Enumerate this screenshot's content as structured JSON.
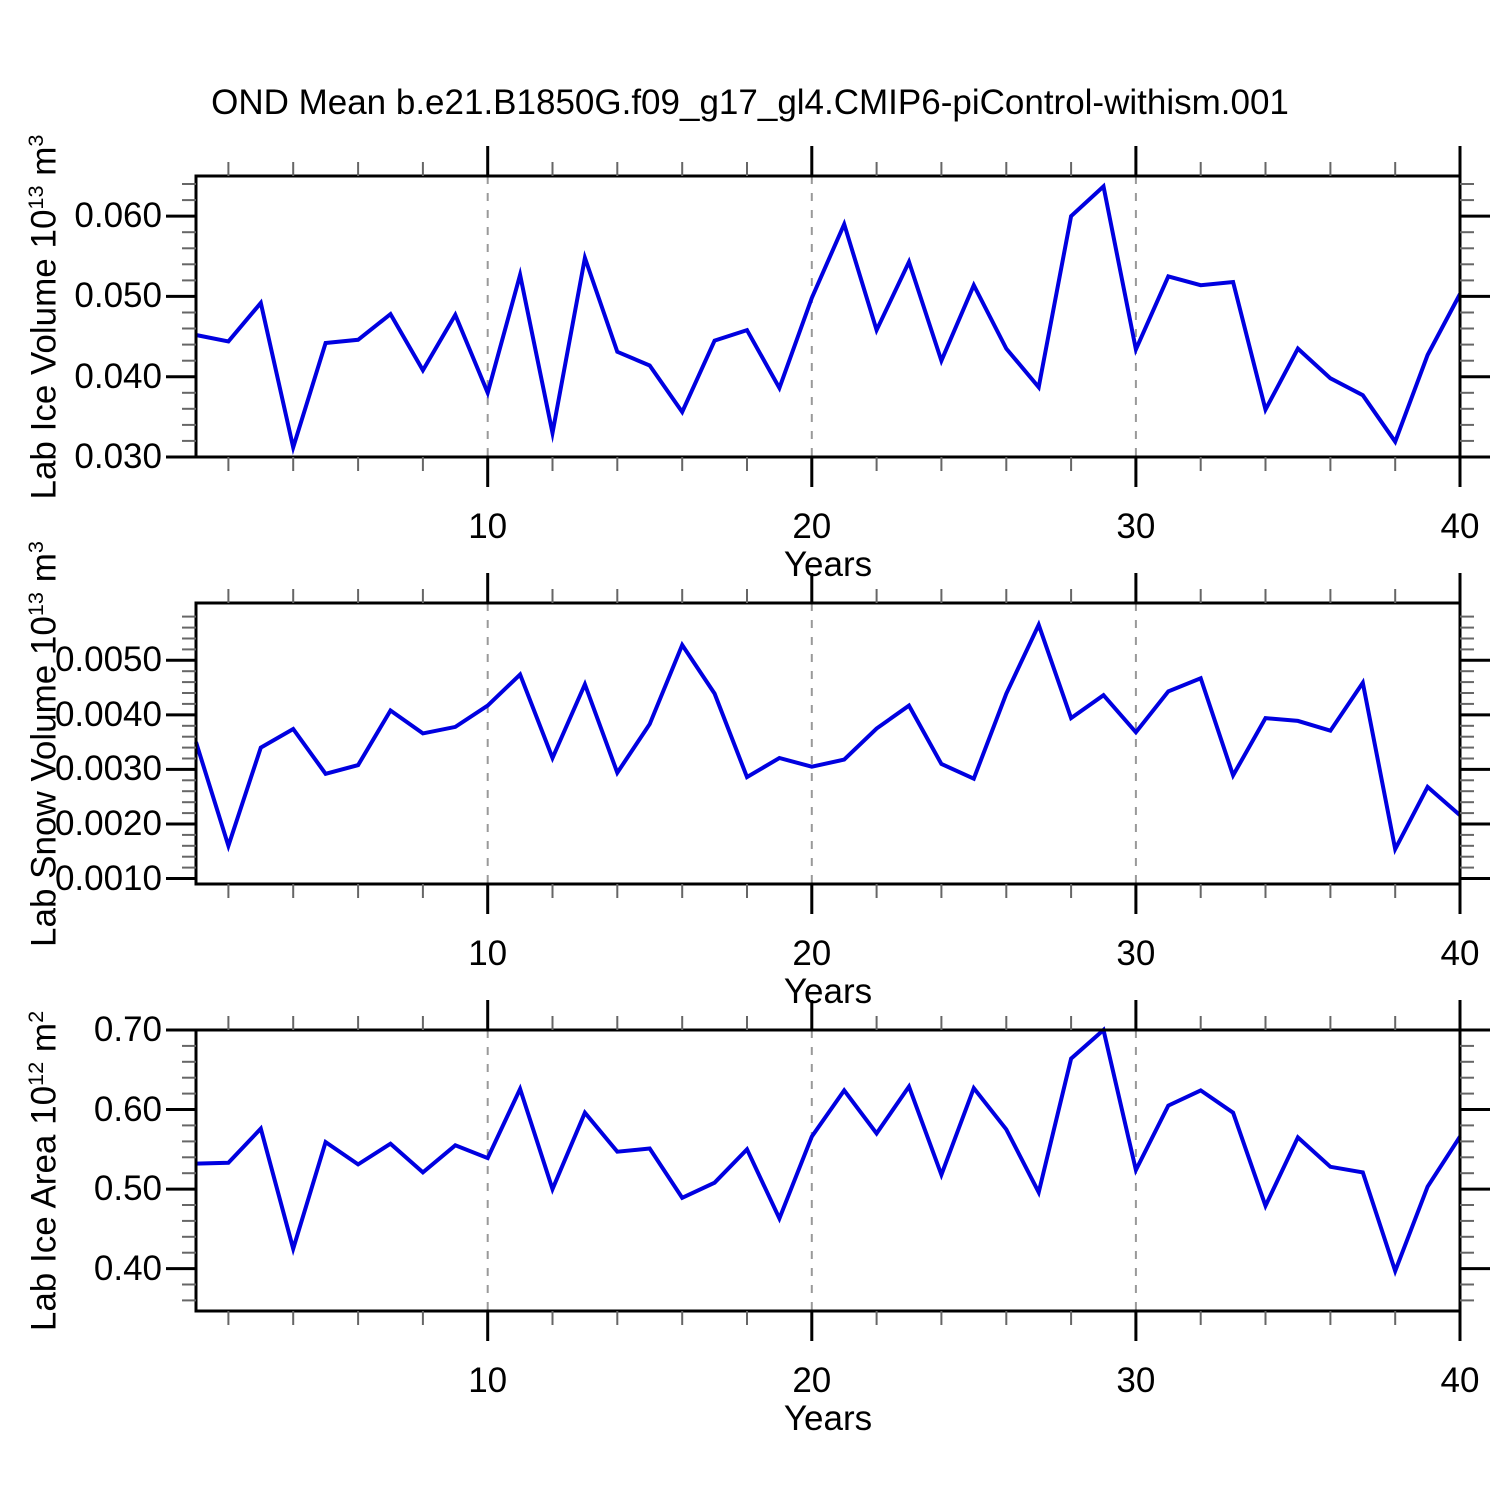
{
  "title": "OND Mean b.e21.B1850G.f09_g17_gl4.CMIP6-piControl-withism.001",
  "colors": {
    "line": "#0000e0",
    "grid": "#999999",
    "axis": "#000000",
    "minor_tick": "#666666",
    "text": "#000000",
    "background": "#ffffff"
  },
  "xlabel": "Years",
  "x_tick_labels": [
    "10",
    "20",
    "30",
    "40"
  ],
  "years": [
    1,
    2,
    3,
    4,
    5,
    6,
    7,
    8,
    9,
    10,
    11,
    12,
    13,
    14,
    15,
    16,
    17,
    18,
    19,
    20,
    21,
    22,
    23,
    24,
    25,
    26,
    27,
    28,
    29,
    30,
    31,
    32,
    33,
    34,
    35,
    36,
    37,
    38,
    39,
    40
  ],
  "chart_data": [
    {
      "type": "line",
      "title": "",
      "ylabel": "Lab Ice Volume 10^{13} m^{3}",
      "xlabel": "Years",
      "xlim": [
        1,
        40
      ],
      "ylim": [
        0.03,
        0.065
      ],
      "yticks": [
        0.03,
        0.04,
        0.05,
        0.06
      ],
      "ytick_labels": [
        "0.030",
        "0.040",
        "0.050",
        "0.060"
      ],
      "y_minor_step": 0.002,
      "xticks": [
        10,
        20,
        30,
        40
      ],
      "x_minor_step": 2,
      "grid_x": [
        10,
        20,
        30
      ],
      "grid_style": "dashed",
      "legend": "none",
      "values": [
        0.0452,
        0.0444,
        0.0492,
        0.0312,
        0.0442,
        0.0446,
        0.0478,
        0.0408,
        0.0477,
        0.038,
        0.0527,
        0.033,
        0.0548,
        0.0431,
        0.0414,
        0.0356,
        0.0445,
        0.0458,
        0.0386,
        0.0498,
        0.059,
        0.0458,
        0.0543,
        0.042,
        0.0514,
        0.0435,
        0.0387,
        0.06,
        0.0637,
        0.0434,
        0.0525,
        0.0514,
        0.0518,
        0.0359,
        0.0435,
        0.0398,
        0.0377,
        0.0319,
        0.0427,
        0.0503
      ]
    },
    {
      "type": "line",
      "title": "",
      "ylabel": "Lab Snow Volume 10^{13} m^{3}",
      "xlabel": "Years",
      "xlim": [
        1,
        40
      ],
      "ylim": [
        0.0009,
        0.00605
      ],
      "yticks": [
        0.001,
        0.002,
        0.003,
        0.004,
        0.005
      ],
      "ytick_labels": [
        "0.0010",
        "0.0020",
        "0.0030",
        "0.0040",
        "0.0050"
      ],
      "y_minor_step": 0.0002,
      "xticks": [
        10,
        20,
        30,
        40
      ],
      "x_minor_step": 2,
      "grid_x": [
        10,
        20,
        30
      ],
      "grid_style": "dashed",
      "legend": "none",
      "values": [
        0.0035,
        0.0016,
        0.0034,
        0.00374,
        0.00292,
        0.00308,
        0.00408,
        0.00366,
        0.00378,
        0.00417,
        0.00474,
        0.00321,
        0.00456,
        0.00294,
        0.00383,
        0.00528,
        0.00439,
        0.00286,
        0.00321,
        0.00305,
        0.00318,
        0.00375,
        0.00417,
        0.0031,
        0.00283,
        0.00439,
        0.00565,
        0.00394,
        0.00436,
        0.00368,
        0.00443,
        0.00467,
        0.00289,
        0.00394,
        0.00389,
        0.00371,
        0.00459,
        0.00154,
        0.00268,
        0.00216
      ]
    },
    {
      "type": "line",
      "title": "",
      "ylabel": "Lab Ice Area 10^{12} m^{2}",
      "xlabel": "Years",
      "xlim": [
        1,
        40
      ],
      "ylim": [
        0.3467,
        0.7
      ],
      "yticks": [
        0.4,
        0.5,
        0.6,
        0.7
      ],
      "ytick_labels": [
        "0.40",
        "0.50",
        "0.60",
        "0.70"
      ],
      "y_minor_step": 0.02,
      "xticks": [
        10,
        20,
        30,
        40
      ],
      "x_minor_step": 2,
      "grid_x": [
        10,
        20,
        30
      ],
      "grid_style": "dashed",
      "legend": "none",
      "values": [
        0.532,
        0.533,
        0.576,
        0.425,
        0.559,
        0.531,
        0.557,
        0.521,
        0.555,
        0.539,
        0.626,
        0.5,
        0.596,
        0.547,
        0.551,
        0.489,
        0.508,
        0.55,
        0.463,
        0.566,
        0.624,
        0.57,
        0.629,
        0.518,
        0.627,
        0.575,
        0.496,
        0.664,
        0.7,
        0.524,
        0.605,
        0.624,
        0.596,
        0.479,
        0.565,
        0.528,
        0.521,
        0.397,
        0.503,
        0.566
      ]
    }
  ]
}
